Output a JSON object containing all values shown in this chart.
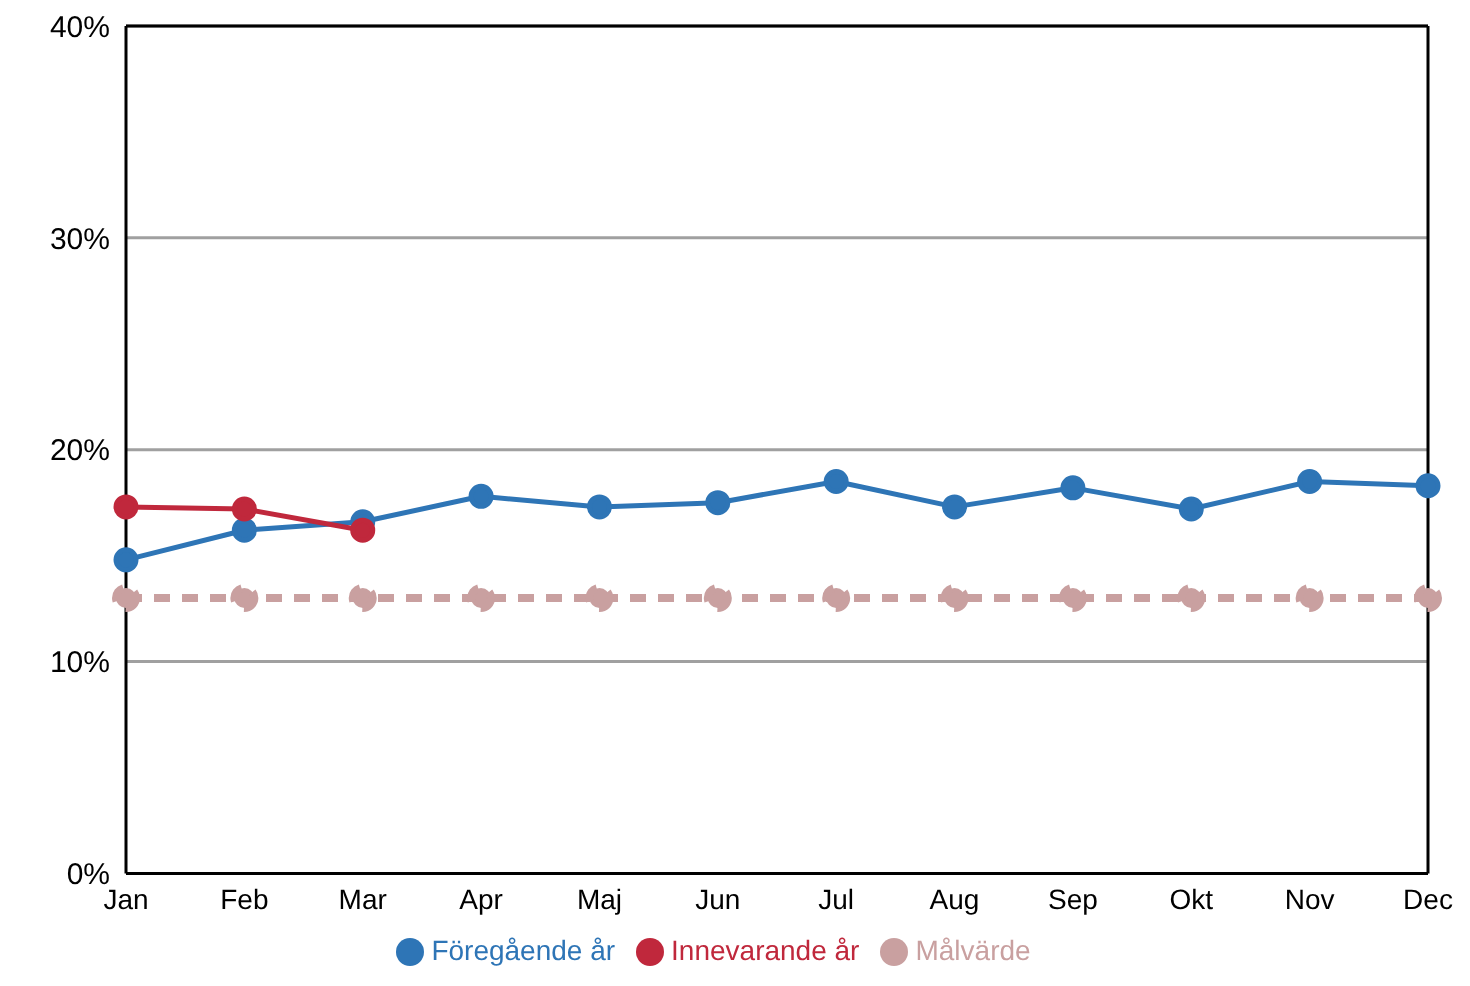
{
  "chart_data": {
    "type": "line",
    "categories": [
      "Jan",
      "Feb",
      "Mar",
      "Apr",
      "Maj",
      "Jun",
      "Jul",
      "Aug",
      "Sep",
      "Okt",
      "Nov",
      "Dec"
    ],
    "series": [
      {
        "name": "Föregående år",
        "color": "#2e75b6",
        "values": [
          14.8,
          16.2,
          16.6,
          17.8,
          17.3,
          17.5,
          18.5,
          17.3,
          18.2,
          17.2,
          18.5,
          18.3
        ]
      },
      {
        "name": "Innevarande år",
        "color": "#c0283c",
        "values": [
          17.3,
          17.2,
          16.2,
          null,
          null,
          null,
          null,
          null,
          null,
          null,
          null,
          null
        ]
      },
      {
        "name": "Målvärde",
        "color": "#c9a0a0",
        "line_style": "dashed",
        "values": [
          13,
          13,
          13,
          13,
          13,
          13,
          13,
          13,
          13,
          13,
          13,
          13
        ]
      }
    ],
    "ylim": [
      0,
      40
    ],
    "yticks": [
      {
        "value": 0,
        "label": "0%"
      },
      {
        "value": 10,
        "label": "10%"
      },
      {
        "value": 20,
        "label": "20%"
      },
      {
        "value": 30,
        "label": "30%"
      },
      {
        "value": 40,
        "label": "40%"
      }
    ],
    "grid": "y",
    "legend": "bottom",
    "marker": "circle"
  }
}
